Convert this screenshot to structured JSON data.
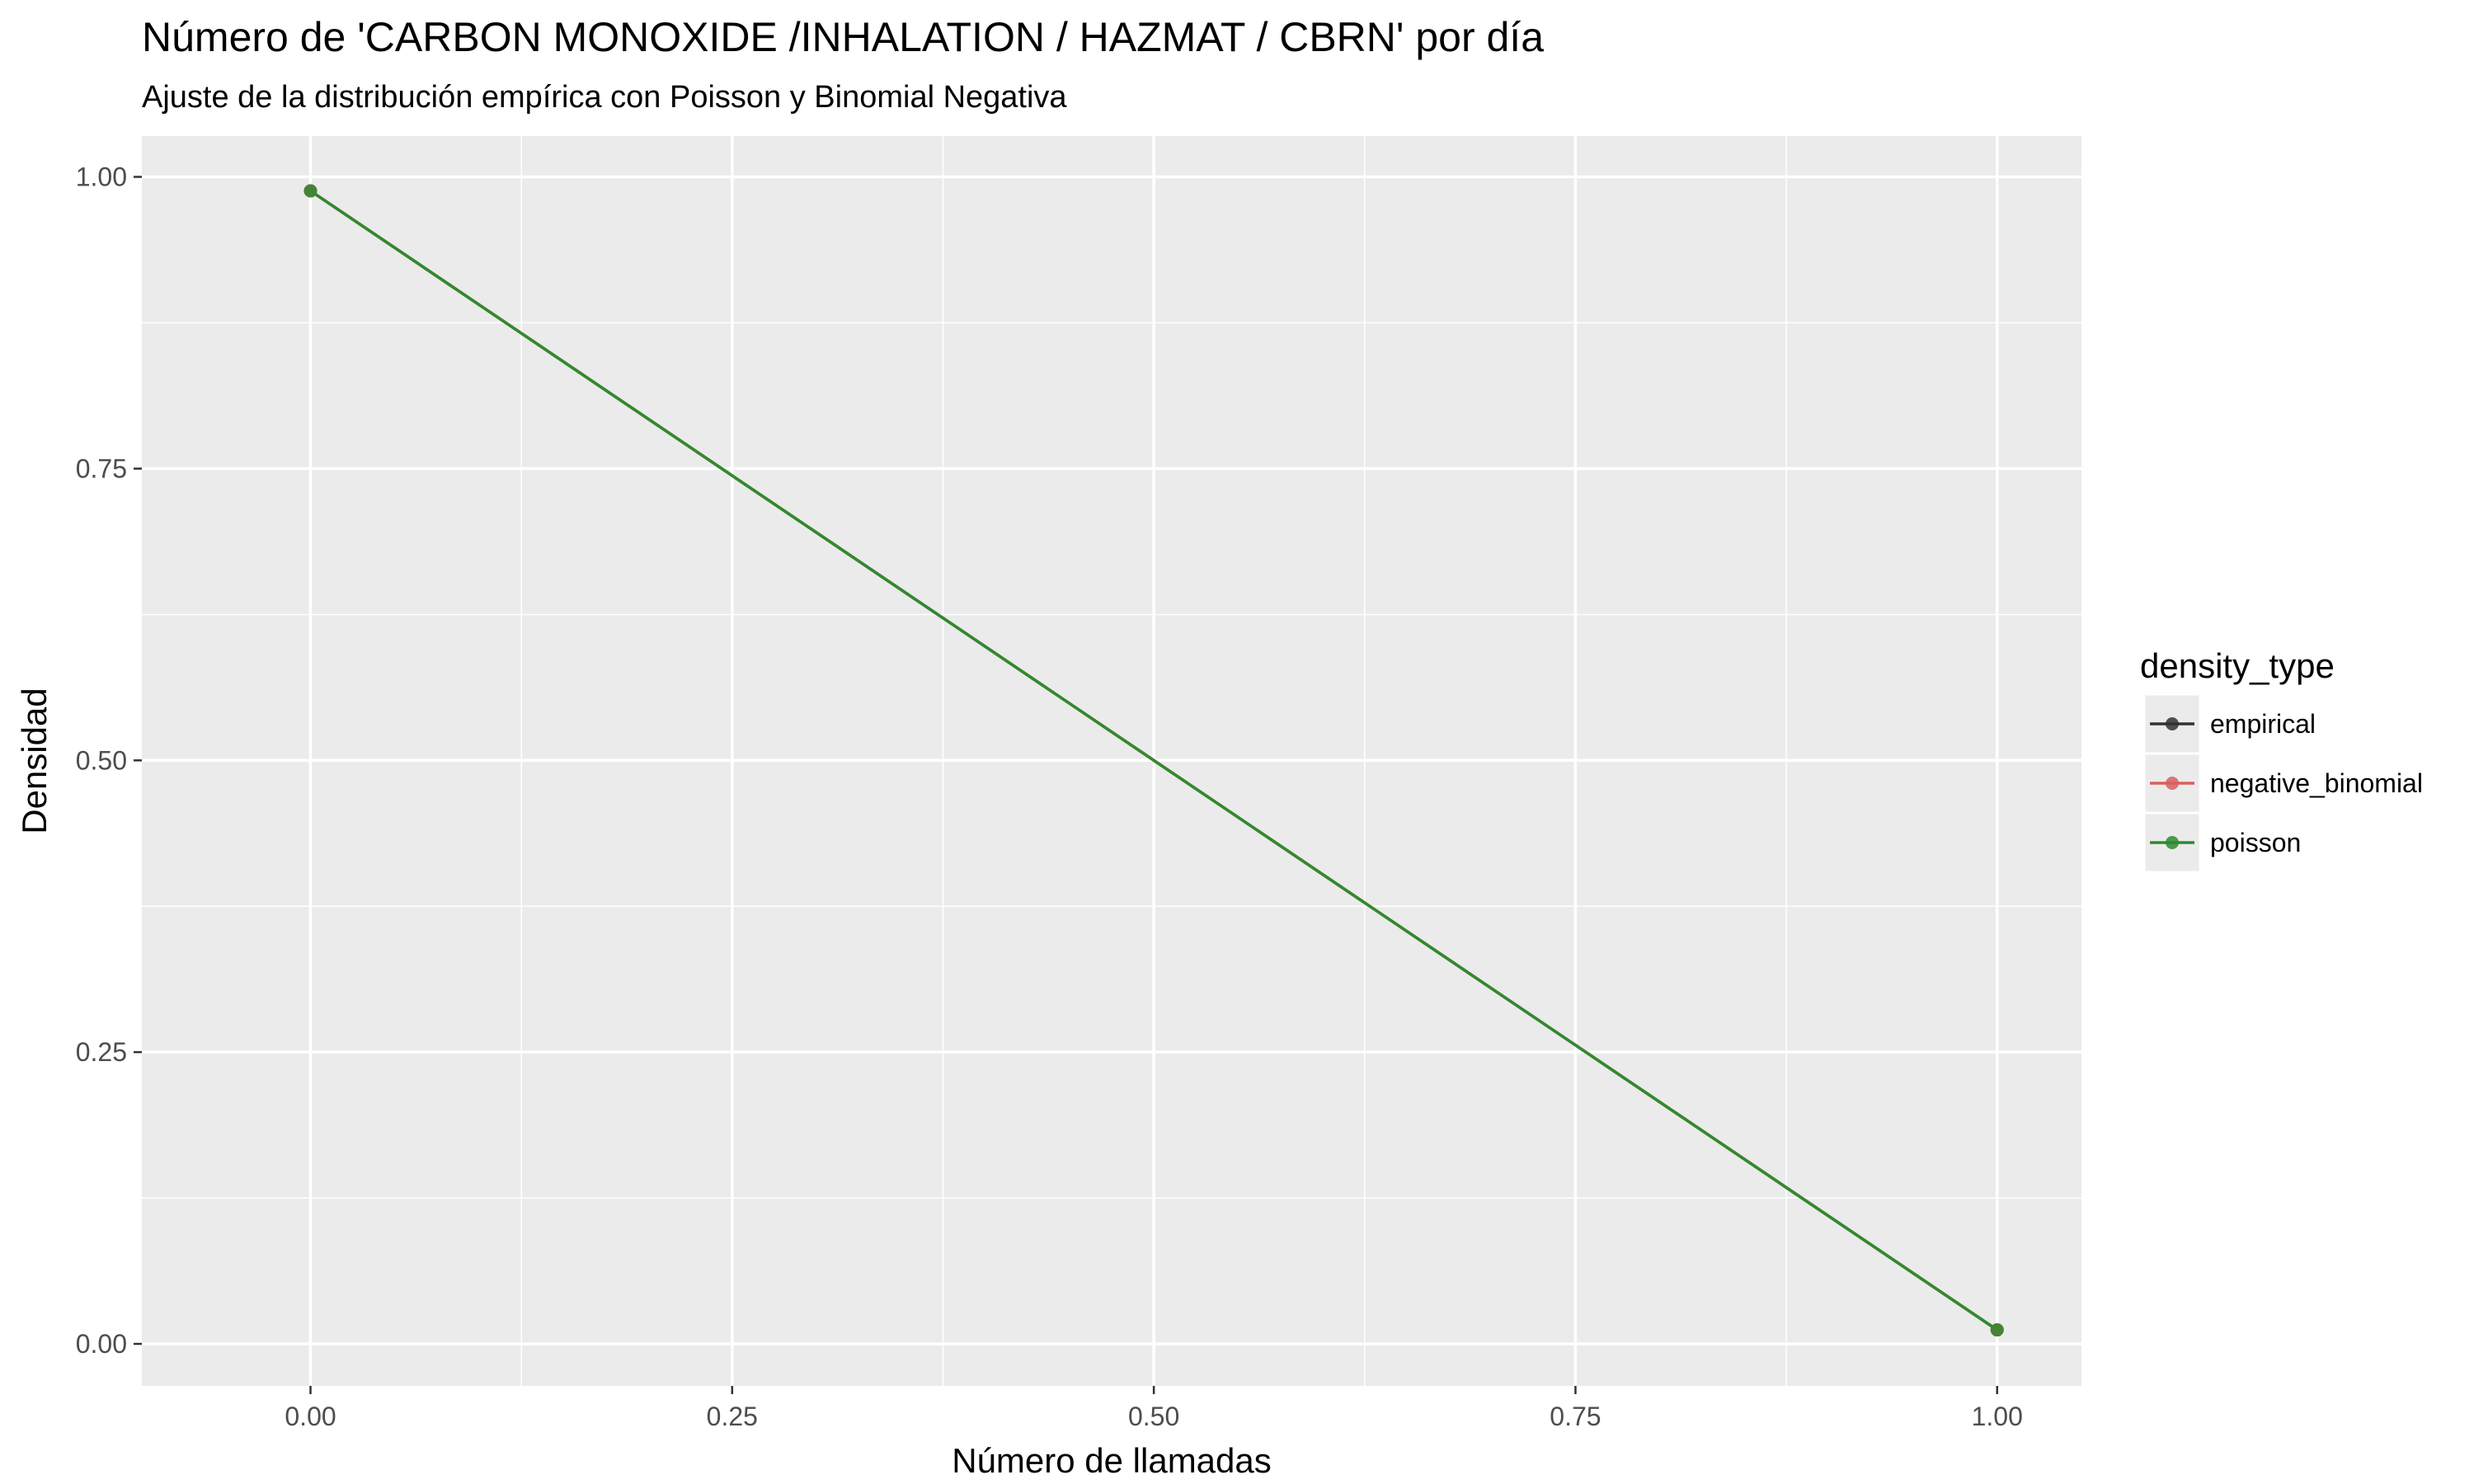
{
  "chart_data": {
    "type": "line",
    "title": "Número de 'CARBON MONOXIDE /INHALATION / HAZMAT / CBRN' por día",
    "subtitle": "Ajuste de la distribución empírica con Poisson y Binomial Negativa",
    "xlabel": "Número de llamadas",
    "ylabel": "Densidad",
    "xlim": [
      -0.1,
      1.05
    ],
    "ylim": [
      -0.036,
      1.035
    ],
    "x_ticks": [
      0,
      0.25,
      0.5,
      0.75,
      1
    ],
    "x_tick_labels": [
      "0.00",
      "0.25",
      "0.50",
      "0.75",
      "1.00"
    ],
    "y_ticks": [
      0,
      0.25,
      0.5,
      0.75,
      1
    ],
    "y_tick_labels": [
      "0.00",
      "0.25",
      "0.50",
      "0.75",
      "1.00"
    ],
    "grid": true,
    "panel_background": "#ebebeb",
    "legend": {
      "title": "density_type",
      "position": "right"
    },
    "series": [
      {
        "name": "empirical",
        "color": "#333333",
        "x": [
          0,
          1
        ],
        "y": [
          0.988,
          0.012
        ]
      },
      {
        "name": "negative_binomial",
        "color": "#d95f5f",
        "x": [
          0,
          1
        ],
        "y": [
          0.988,
          0.012
        ]
      },
      {
        "name": "poisson",
        "color": "#2e8b2e",
        "x": [
          0,
          1
        ],
        "y": [
          0.988,
          0.012
        ]
      }
    ]
  }
}
